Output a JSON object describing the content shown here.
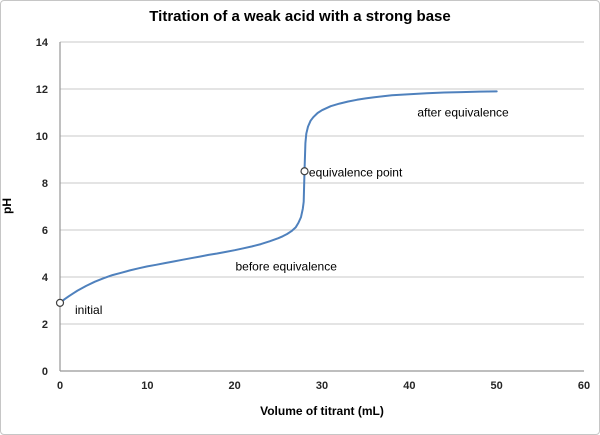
{
  "chart": {
    "title": "Titration of a weak acid with a strong base",
    "x_axis_label": "Volume of titrant (mL)",
    "y_axis_label": "pH",
    "colors": {
      "line": "#4F81BD",
      "gridline": "#c9c9c9",
      "axis": "#969696",
      "tick_text": "#262626",
      "annotation_text": "#000000",
      "marker_stroke": "#404040",
      "marker_fill": "#ffffff"
    }
  },
  "chart_data": {
    "type": "line",
    "title": "Titration of a weak acid with a strong base",
    "xlabel": "Volume of titrant (mL)",
    "ylabel": "pH",
    "xlim": [
      0,
      60
    ],
    "ylim": [
      0,
      14
    ],
    "x_ticks": [
      0,
      10,
      20,
      30,
      40,
      50,
      60
    ],
    "y_ticks": [
      0,
      2,
      4,
      6,
      8,
      10,
      12,
      14
    ],
    "grid": "horizontal",
    "legend": "none",
    "series": [
      {
        "name": "titration curve",
        "points": [
          [
            0,
            2.9
          ],
          [
            0.5,
            3.05
          ],
          [
            1,
            3.18
          ],
          [
            1.5,
            3.3
          ],
          [
            2,
            3.42
          ],
          [
            3,
            3.62
          ],
          [
            4,
            3.8
          ],
          [
            5,
            3.95
          ],
          [
            6,
            4.08
          ],
          [
            7,
            4.18
          ],
          [
            8,
            4.28
          ],
          [
            9,
            4.37
          ],
          [
            10,
            4.45
          ],
          [
            11,
            4.52
          ],
          [
            12,
            4.59
          ],
          [
            13,
            4.66
          ],
          [
            14,
            4.73
          ],
          [
            15,
            4.8
          ],
          [
            16,
            4.87
          ],
          [
            17,
            4.94
          ],
          [
            18,
            5.0
          ],
          [
            19,
            5.07
          ],
          [
            20,
            5.14
          ],
          [
            21,
            5.22
          ],
          [
            22,
            5.3
          ],
          [
            23,
            5.4
          ],
          [
            24,
            5.52
          ],
          [
            25,
            5.65
          ],
          [
            25.5,
            5.73
          ],
          [
            26,
            5.83
          ],
          [
            26.5,
            5.95
          ],
          [
            27,
            6.12
          ],
          [
            27.3,
            6.3
          ],
          [
            27.6,
            6.55
          ],
          [
            27.8,
            6.9
          ],
          [
            27.9,
            7.2
          ],
          [
            28,
            8.5
          ],
          [
            28.1,
            9.7
          ],
          [
            28.2,
            10.1
          ],
          [
            28.4,
            10.4
          ],
          [
            28.7,
            10.65
          ],
          [
            29,
            10.8
          ],
          [
            29.5,
            10.98
          ],
          [
            30,
            11.1
          ],
          [
            31,
            11.27
          ],
          [
            32,
            11.38
          ],
          [
            33,
            11.47
          ],
          [
            34,
            11.54
          ],
          [
            35,
            11.6
          ],
          [
            36,
            11.65
          ],
          [
            37,
            11.69
          ],
          [
            38,
            11.73
          ],
          [
            40,
            11.78
          ],
          [
            42,
            11.82
          ],
          [
            44,
            11.85
          ],
          [
            46,
            11.87
          ],
          [
            48,
            11.89
          ],
          [
            50,
            11.9
          ]
        ]
      }
    ],
    "markers": [
      {
        "label": "initial",
        "x": 0,
        "y": 2.9
      },
      {
        "label": "equivalence point",
        "x": 28,
        "y": 8.5
      }
    ],
    "annotations": [
      {
        "text": "initial",
        "x": 1.72,
        "y": 2.6,
        "anchor": "start"
      },
      {
        "text": "equivalence point",
        "x": 28.5,
        "y": 8.45,
        "anchor": "start"
      },
      {
        "text": "before equivalence",
        "x": 25.9,
        "y": 4.45,
        "anchor": "middle"
      },
      {
        "text": "after equivalence",
        "x": 46.15,
        "y": 11.0,
        "anchor": "middle"
      }
    ]
  }
}
